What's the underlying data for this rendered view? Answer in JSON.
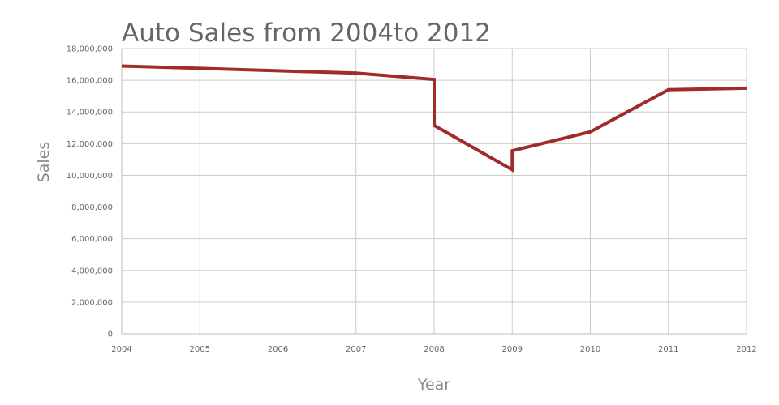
{
  "chart_data": {
    "type": "line",
    "title": "Auto Sales from 2004to 2012",
    "xlabel": "Year",
    "ylabel": "Sales",
    "xlim": [
      2004,
      2012
    ],
    "ylim": [
      0,
      18000000
    ],
    "x_ticks": [
      "2004",
      "2005",
      "2006",
      "2007",
      "2008",
      "2009",
      "2010",
      "2011",
      "2012"
    ],
    "y_ticks": [
      "0",
      "2,000,000",
      "4,000,000",
      "6,000,000",
      "8,000,000",
      "10,000,000",
      "12,000,000",
      "14,000,000",
      "16,000,000",
      "18,000,000"
    ],
    "grid": true,
    "legend": "none",
    "series": [
      {
        "color": "#a12b2b",
        "points": [
          {
            "x": 2004,
            "y": 16900000
          },
          {
            "x": 2005,
            "y": 16750000
          },
          {
            "x": 2006,
            "y": 16600000
          },
          {
            "x": 2007,
            "y": 16450000
          },
          {
            "x": 2008,
            "y": 16050000
          },
          {
            "x": 2008,
            "y": 13150000
          },
          {
            "x": 2009,
            "y": 10350000
          },
          {
            "x": 2009,
            "y": 11550000
          },
          {
            "x": 2010,
            "y": 12750000
          },
          {
            "x": 2011,
            "y": 15400000
          },
          {
            "x": 2012,
            "y": 15500000
          }
        ]
      }
    ]
  }
}
